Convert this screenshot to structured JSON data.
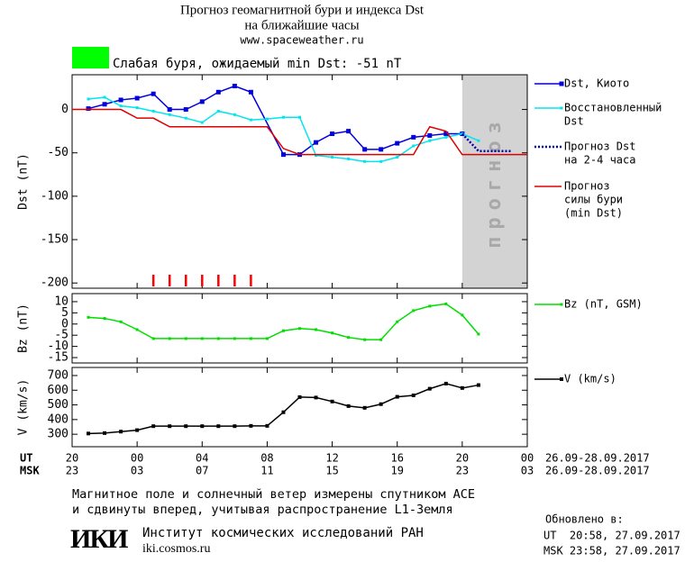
{
  "header": {
    "title": "Прогноз геомагнитной бури и индекса Dst",
    "subtitle": "на ближайшие часы",
    "website": "www.spaceweather.ru",
    "status_color": "#00ff00",
    "status": "Слабая буря, ожидаемый min Dst: -51 nT"
  },
  "x_axis": {
    "xlim": [
      0,
      28
    ],
    "ut_label": "UT",
    "msk_label": "MSK",
    "xticks": [
      {
        "value": 0,
        "label": "20"
      },
      {
        "value": 4,
        "label": "00"
      },
      {
        "value": 8,
        "label": "04"
      },
      {
        "value": 12,
        "label": "08"
      },
      {
        "value": 16,
        "label": "12"
      },
      {
        "value": 20,
        "label": "16"
      },
      {
        "value": 24,
        "label": "20"
      },
      {
        "value": 28,
        "label": "00"
      }
    ],
    "msk_labels": [
      "23",
      "03",
      "07",
      "11",
      "15",
      "19",
      "23",
      "03"
    ],
    "ut_range": "26.09-28.09.2017",
    "msk_range": "26.09-28.09.2017"
  },
  "chart_data": [
    {
      "type": "line",
      "ylabel": "Dst (nT)",
      "ylim": [
        -206,
        40
      ],
      "yticks": [
        0,
        -50,
        -100,
        -150,
        -200
      ],
      "forecast_region": [
        24,
        28
      ],
      "forecast_label": "прогноз",
      "forecast_color": "#d3d3d3",
      "storm_hours": [
        5,
        6,
        7,
        8,
        9,
        10,
        11
      ],
      "storm_color": "#ff0000",
      "series": [
        {
          "name": [
            "Dst, Киото"
          ],
          "color": "#0000dd",
          "line_style": "solid",
          "marker": 5,
          "x": [
            1,
            2,
            3,
            4,
            5,
            6,
            7,
            8,
            9,
            10,
            11,
            13,
            14,
            15,
            16,
            17,
            18,
            19,
            20,
            21,
            22,
            23,
            24
          ],
          "values": [
            1,
            6,
            11,
            13,
            18,
            0,
            0,
            9,
            20,
            27,
            20,
            -52,
            -52,
            -38,
            -28,
            -25,
            -46,
            -46,
            -39,
            -32,
            -30,
            -28,
            -28
          ]
        },
        {
          "name": [
            "Восстановленный",
            "Dst"
          ],
          "color": "#00e5ee",
          "line_style": "solid",
          "marker": 3,
          "x": [
            1,
            2,
            3,
            4,
            5,
            6,
            7,
            8,
            9,
            10,
            11,
            12,
            13,
            14,
            15,
            16,
            17,
            18,
            19,
            20,
            21,
            22,
            23,
            24,
            25
          ],
          "values": [
            12,
            14,
            4,
            2,
            -2,
            -6,
            -10,
            -15,
            -2,
            -6,
            -12,
            -11,
            -9,
            -9,
            -53,
            -55,
            -57,
            -60,
            -60,
            -55,
            -42,
            -36,
            -32,
            -28,
            -36
          ]
        },
        {
          "name": [
            "Прогноз Dst",
            "на 2-4 часа"
          ],
          "color": "#0000aa",
          "line_style": "dotted",
          "marker": 0,
          "x": [
            24,
            25,
            27
          ],
          "values": [
            -28,
            -48,
            -48
          ]
        },
        {
          "name": [
            "Прогноз",
            "силы бури",
            "(min Dst)"
          ],
          "color": "#dd0000",
          "line_style": "solid",
          "marker": 0,
          "x": [
            0,
            3,
            4,
            5,
            6,
            12,
            13,
            14,
            21,
            22,
            23,
            24,
            28
          ],
          "values": [
            0,
            0,
            -10,
            -10,
            -20,
            -20,
            -45,
            -52,
            -52,
            -20,
            -25,
            -52,
            -52
          ]
        }
      ]
    },
    {
      "type": "line",
      "ylabel": "Bz (nT)",
      "ylim": [
        -17.4,
        13.6
      ],
      "yticks": [
        10,
        5,
        0,
        -5,
        -10,
        -15
      ],
      "series": [
        {
          "name": [
            "Bz (nT, GSM)"
          ],
          "color": "#00dd00",
          "line_style": "solid",
          "marker": 3,
          "x": [
            1,
            2,
            3,
            4,
            5,
            6,
            7,
            8,
            9,
            10,
            11,
            12,
            13,
            14,
            15,
            16,
            17,
            18,
            19,
            20,
            21,
            22,
            23,
            24,
            25
          ],
          "values": [
            3,
            2.5,
            1,
            -2.5,
            -6.5,
            -6.5,
            -6.5,
            -6.5,
            -6.5,
            -6.5,
            -6.5,
            -6.5,
            -3,
            -2,
            -2.5,
            -4,
            -6,
            -7,
            -7,
            1,
            6,
            8,
            9,
            4,
            -4.5
          ]
        }
      ]
    },
    {
      "type": "line",
      "ylabel": "V (km/s)",
      "ylim": [
        215,
        755
      ],
      "yticks": [
        300,
        400,
        500,
        600,
        700
      ],
      "series": [
        {
          "name": [
            "V (km/s)"
          ],
          "color": "#000000",
          "line_style": "solid",
          "marker": 4,
          "x": [
            1,
            2,
            3,
            4,
            5,
            6,
            7,
            8,
            9,
            10,
            11,
            12,
            13,
            14,
            15,
            16,
            17,
            18,
            19,
            20,
            21,
            22,
            23,
            24,
            25
          ],
          "values": [
            305,
            308,
            318,
            328,
            355,
            355,
            355,
            355,
            355,
            355,
            357,
            357,
            450,
            553,
            550,
            523,
            492,
            480,
            505,
            555,
            565,
            610,
            645,
            615,
            635
          ]
        }
      ]
    }
  ],
  "footer": {
    "note": [
      "Магнитное поле и солнечный ветер измерены спутником ACE",
      "и сдвинуты вперед, учитывая распространение L1-Земля"
    ],
    "logo": "ИКИ",
    "institute": "Институт космических исследований РАН",
    "institute_site": "iki.cosmos.ru",
    "updated_label": "Обновлено в:",
    "updated_ut": "UT  20:58, 27.09.2017",
    "updated_msk": "MSK 23:58, 27.09.2017"
  }
}
